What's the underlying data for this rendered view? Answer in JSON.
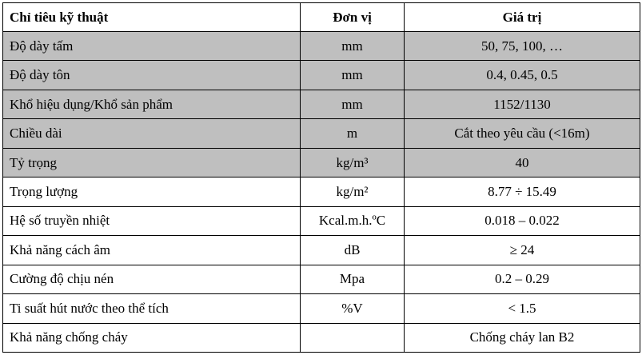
{
  "colors": {
    "shaded_row": "#bfbfbf",
    "border": "#000000",
    "background": "#ffffff"
  },
  "table": {
    "headers": {
      "criteria": "Chỉ tiêu kỹ thuật",
      "unit": "Đơn vị",
      "value": "Giá trị"
    },
    "rows": [
      {
        "name": "Độ dày tấm",
        "unit": "mm",
        "value": "50, 75, 100, …"
      },
      {
        "name": "Độ dày tôn",
        "unit": "mm",
        "value": "0.4, 0.45, 0.5"
      },
      {
        "name": "Khổ hiệu dụng/Khổ sản phẩm",
        "unit": "mm",
        "value": "1152/1130"
      },
      {
        "name": "Chiều dài",
        "unit": "m",
        "value": "Cắt theo yêu cầu (<16m)"
      },
      {
        "name": "Tỷ trọng",
        "unit": "kg/m³",
        "value": "40"
      },
      {
        "name": "Trọng lượng",
        "unit": "kg/m²",
        "value": "8.77 ÷ 15.49"
      },
      {
        "name": "Hệ số truyền nhiệt",
        "unit": "Kcal.m.h.ºC",
        "value": "0.018 – 0.022"
      },
      {
        "name": "Khả năng cách âm",
        "unit": "dB",
        "value": "≥ 24"
      },
      {
        "name": "Cường độ chịu nén",
        "unit": "Mpa",
        "value": "0.2 – 0.29"
      },
      {
        "name": "Ti suất hút nước theo thể tích",
        "unit": "%V",
        "value": "< 1.5"
      },
      {
        "name": "Khả năng chống cháy",
        "unit": "",
        "value": "Chống cháy lan B2"
      }
    ]
  }
}
